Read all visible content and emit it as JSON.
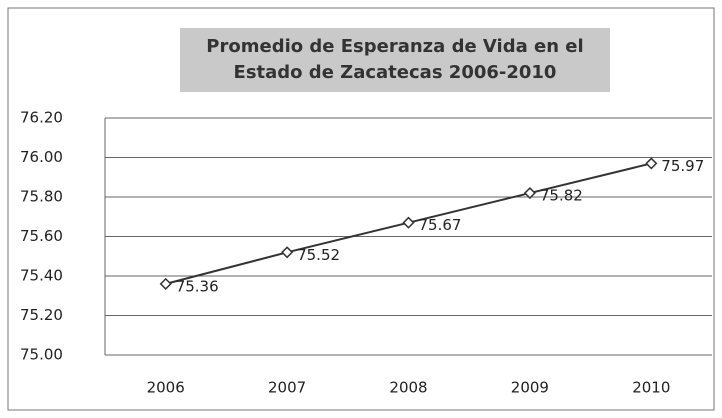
{
  "chart_data": {
    "type": "line",
    "title": "Promedio de Esperanza de Vida en el Estado de Zacatecas 2006-2010",
    "categories": [
      "2006",
      "2007",
      "2008",
      "2009",
      "2010"
    ],
    "series": [
      {
        "name": "Esperanza de vida",
        "color": "#333333",
        "values": [
          75.36,
          75.52,
          75.67,
          75.82,
          75.97
        ]
      }
    ],
    "ylim": [
      75.0,
      76.2
    ],
    "yticks": [
      {
        "value": 75.0,
        "label": "75.00"
      },
      {
        "value": 75.2,
        "label": "75.20"
      },
      {
        "value": 75.4,
        "label": "75.40"
      },
      {
        "value": 75.6,
        "label": "75.60"
      },
      {
        "value": 75.8,
        "label": "75.80"
      },
      {
        "value": 76.0,
        "label": "76.00"
      },
      {
        "value": 76.2,
        "label": "76.20"
      }
    ],
    "grid": true
  }
}
